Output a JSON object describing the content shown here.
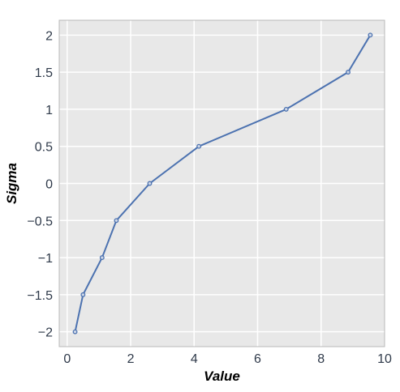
{
  "chart_data": {
    "type": "line",
    "title": "",
    "xlabel": "Value",
    "ylabel": "Sigma",
    "xlim": [
      -0.25,
      10
    ],
    "ylim": [
      -2.2,
      2.2
    ],
    "xticks": [
      0,
      2,
      4,
      6,
      8,
      10
    ],
    "xtick_labels": [
      "0",
      "2",
      "4",
      "6",
      "8",
      "10"
    ],
    "yticks": [
      -2,
      -1.5,
      -1,
      -0.5,
      0,
      0.5,
      1,
      1.5,
      2
    ],
    "ytick_labels": [
      "−2",
      "−1.5",
      "−1",
      "−0.5",
      "0",
      "0.5",
      "1",
      "1.5",
      "2"
    ],
    "grid": true,
    "series": [
      {
        "color": "#4c72b0",
        "x": [
          0.25,
          0.5,
          1.1,
          1.55,
          2.6,
          4.15,
          6.9,
          8.85,
          9.55
        ],
        "y": [
          -2,
          -1.5,
          -1,
          -0.5,
          0,
          0.5,
          1,
          1.5,
          2
        ]
      }
    ]
  },
  "colors": {
    "plot_background": "#e8e8e8",
    "grid": "#ffffff",
    "frame": "#b8b8b8"
  }
}
